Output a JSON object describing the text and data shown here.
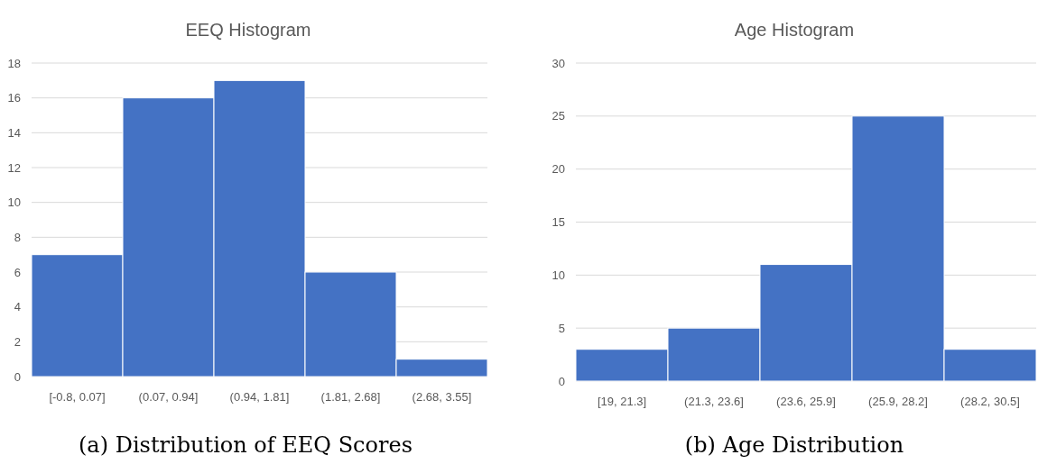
{
  "chart_data": [
    {
      "type": "bar",
      "title": "EEQ Histogram",
      "categories": [
        "[-0.8, 0.07]",
        "(0.07, 0.94]",
        "(0.94, 1.81]",
        "(1.81, 2.68]",
        "(2.68, 3.55]"
      ],
      "values": [
        7,
        16,
        17,
        6,
        1
      ],
      "color": "#4472c4",
      "ylim": [
        0,
        18
      ],
      "yticks": [
        0,
        2,
        4,
        6,
        8,
        10,
        12,
        14,
        16,
        18
      ],
      "grid": "y",
      "annotations": [
        "(a) Distribution of EEQ Scores"
      ]
    },
    {
      "type": "bar",
      "title": "Age Histogram",
      "categories": [
        "[19, 21.3]",
        "(21.3, 23.6]",
        "(23.6, 25.9]",
        "(25.9, 28.2]",
        "(28.2, 30.5]"
      ],
      "values": [
        3,
        5,
        11,
        25,
        3
      ],
      "color": "#4472c4",
      "ylim": [
        0,
        30
      ],
      "yticks": [
        0,
        5,
        10,
        15,
        20,
        25,
        30
      ],
      "grid": "y",
      "annotations": [
        "(b) Age Distribution"
      ]
    }
  ]
}
